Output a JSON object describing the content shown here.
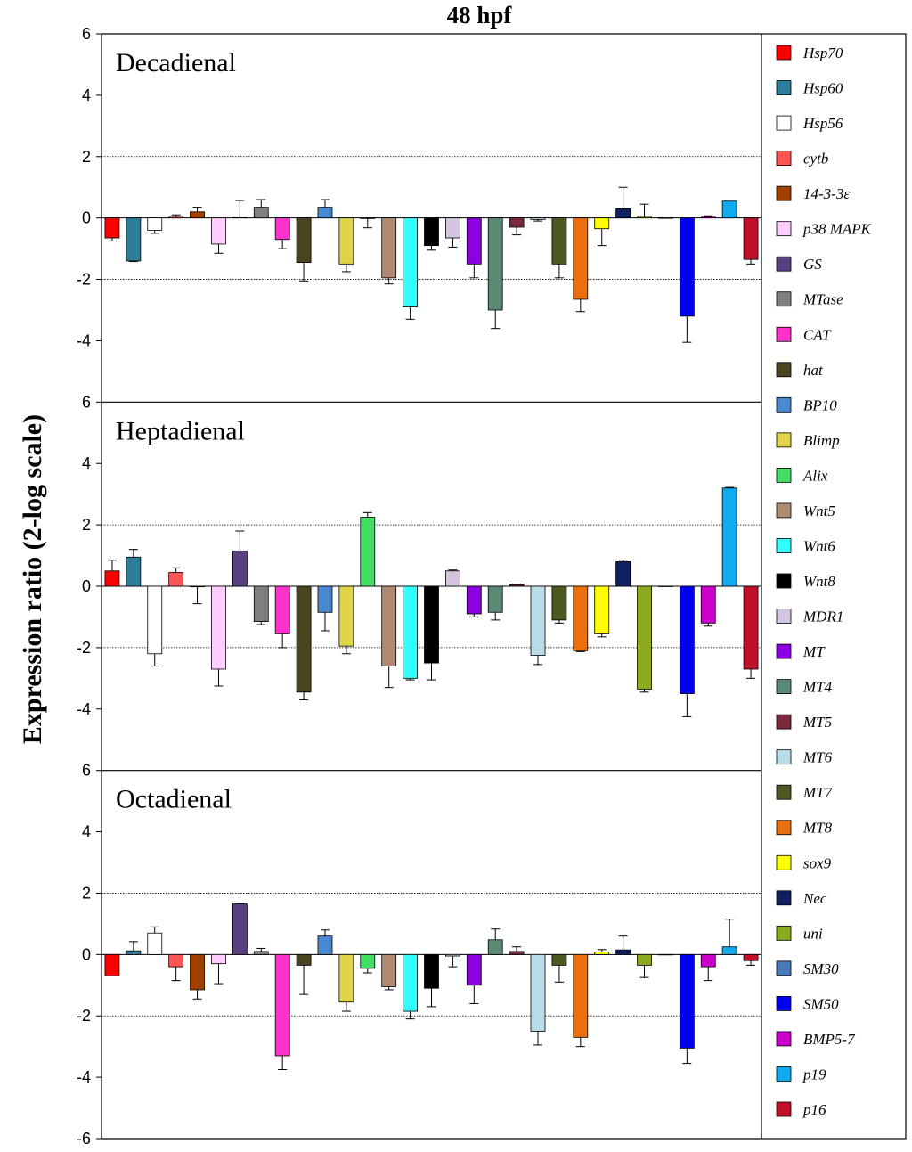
{
  "chart_data": {
    "type": "bar",
    "title": "48 hpf",
    "ylabel": "Expression ratio (2-log scale)",
    "ylim": [
      -6,
      6
    ],
    "y_ticks": [
      6,
      4,
      2,
      0,
      -2,
      -4,
      -6
    ],
    "y_tick_labels": [
      "6",
      "4",
      "2",
      "0",
      "-2",
      "-4",
      "-6"
    ],
    "reference_lines": [
      2,
      -2
    ],
    "legend_position": "right",
    "categories": [
      "Hsp70",
      "Hsp60",
      "Hsp56",
      "cytb",
      "14-3-3ε",
      "p38 MAPK",
      "GS",
      "MTase",
      "CAT",
      "hat",
      "BP10",
      "Blimp",
      "Alix",
      "Wnt5",
      "Wnt6",
      "Wnt8",
      "MDR1",
      "MT",
      "MT4",
      "MT5",
      "MT6",
      "MT7",
      "MT8",
      "sox9",
      "Nec",
      "uni",
      "SM30",
      "SM50",
      "BMP5-7",
      "p19",
      "p16"
    ],
    "colors": [
      "#ff0000",
      "#2e7d9a",
      "#ffffff",
      "#ff5555",
      "#a04000",
      "#ffccff",
      "#5a4080",
      "#808080",
      "#ff33cc",
      "#4a4420",
      "#4a88d0",
      "#e0d44a",
      "#44dd66",
      "#b08a70",
      "#33ffff",
      "#000000",
      "#d4c4e0",
      "#8a00e0",
      "#5a8a74",
      "#7a2a3a",
      "#b8dde8",
      "#4a5a20",
      "#e87010",
      "#ffff00",
      "#102060",
      "#8aaa20",
      "#4a7ab8",
      "#0000ee",
      "#cc00cc",
      "#10aaee",
      "#c0102a"
    ],
    "panels": [
      {
        "name": "Decadienal",
        "values": [
          -0.65,
          -1.4,
          -0.4,
          0.05,
          0.2,
          -0.85,
          0.02,
          0.35,
          -0.7,
          -1.45,
          0.35,
          -1.5,
          -0.02,
          -1.95,
          -2.9,
          -0.9,
          -0.65,
          -1.5,
          -3.0,
          -0.3,
          -0.05,
          -1.5,
          -2.65,
          -0.35,
          0.3,
          0.05,
          0.0,
          -3.2,
          0.05,
          0.55,
          -1.35
        ],
        "errors": [
          0.1,
          0.02,
          0.1,
          0.05,
          0.15,
          0.3,
          0.55,
          0.25,
          0.3,
          0.6,
          0.25,
          0.25,
          0.3,
          0.2,
          0.4,
          0.15,
          0.3,
          0.45,
          0.6,
          0.25,
          0.05,
          0.45,
          0.4,
          0.55,
          0.7,
          0.4,
          0.0,
          0.85,
          0.02,
          0.0,
          0.15
        ]
      },
      {
        "name": "Heptadienal",
        "values": [
          0.5,
          0.95,
          -2.2,
          0.45,
          -0.02,
          -2.7,
          1.15,
          -1.15,
          -1.55,
          -3.45,
          -0.85,
          -1.95,
          2.25,
          -2.6,
          -3.0,
          -2.5,
          0.5,
          -0.9,
          -0.85,
          0.05,
          -2.25,
          -1.1,
          -2.1,
          -1.55,
          0.8,
          -3.35,
          0.0,
          -3.5,
          -1.2,
          3.2,
          -2.7
        ],
        "errors": [
          0.35,
          0.25,
          0.4,
          0.15,
          0.55,
          0.55,
          0.65,
          0.1,
          0.45,
          0.25,
          0.6,
          0.25,
          0.15,
          0.7,
          0.05,
          0.55,
          0.03,
          0.1,
          0.25,
          0.02,
          0.3,
          0.1,
          0.03,
          0.1,
          0.05,
          0.1,
          0.0,
          0.75,
          0.1,
          0.02,
          0.3
        ]
      },
      {
        "name": "Octadienal",
        "values": [
          -0.7,
          0.12,
          0.7,
          -0.4,
          -1.15,
          -0.3,
          1.65,
          0.1,
          -3.3,
          -0.35,
          0.6,
          -1.55,
          -0.45,
          -1.05,
          -1.85,
          -1.1,
          -0.05,
          -1.0,
          0.48,
          0.1,
          -2.5,
          -0.35,
          -2.7,
          0.08,
          0.15,
          -0.35,
          0.0,
          -3.05,
          -0.4,
          0.25,
          -0.2
        ],
        "errors": [
          0.0,
          0.3,
          0.2,
          0.45,
          0.3,
          0.65,
          0.02,
          0.1,
          0.45,
          0.95,
          0.2,
          0.3,
          0.15,
          0.1,
          0.25,
          0.6,
          0.35,
          0.6,
          0.35,
          0.15,
          0.45,
          0.55,
          0.3,
          0.08,
          0.45,
          0.4,
          0.0,
          0.5,
          0.45,
          0.9,
          0.15
        ]
      }
    ]
  }
}
